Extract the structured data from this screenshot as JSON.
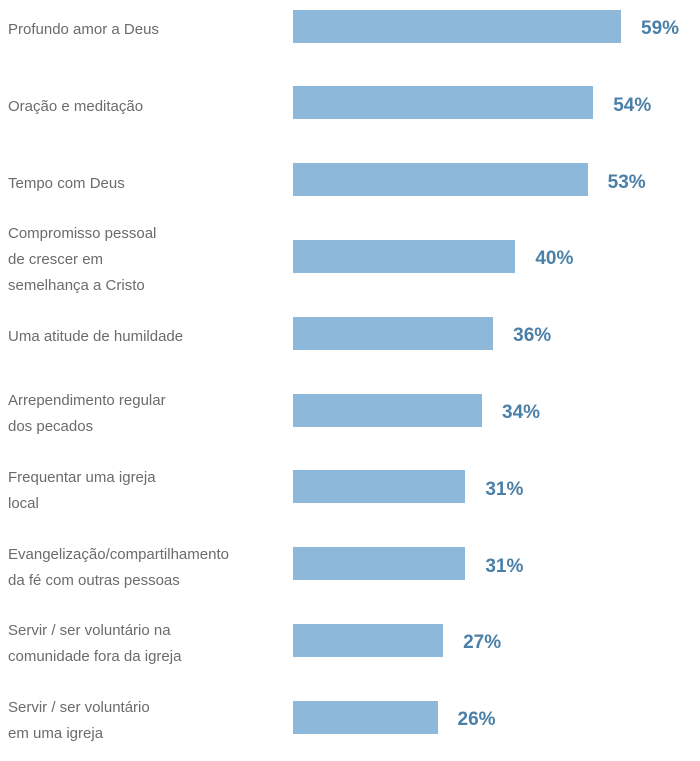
{
  "chart_data": {
    "type": "bar",
    "orientation": "horizontal",
    "categories": [
      "Profundo amor a Deus",
      "Oração e meditação",
      "Tempo com Deus",
      "Compromisso pessoal\nde crescer em\nsemelhança a Cristo",
      "Uma atitude de humildade",
      "Arrependimento regular\ndos pecados",
      "Frequentar uma igreja\nlocal",
      "Evangelização/compartilhamento\nda fé com outras pessoas",
      "Servir / ser voluntário na\ncomunidade fora da igreja",
      "Servir / ser voluntário\nem uma igreja"
    ],
    "values": [
      59,
      54,
      53,
      40,
      36,
      34,
      31,
      31,
      27,
      26
    ],
    "value_labels": [
      "59%",
      "54%",
      "53%",
      "40%",
      "36%",
      "34%",
      "31%",
      "31%",
      "27%",
      "26%"
    ],
    "color": "#8db8da",
    "label_color": "#4a80a8"
  }
}
